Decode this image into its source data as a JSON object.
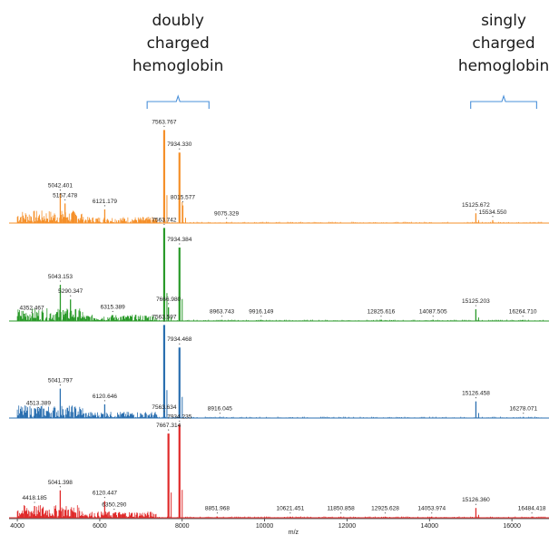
{
  "chart_data": {
    "type": "line",
    "xlabel": "m/z",
    "xlim": [
      3800,
      16900
    ],
    "x_ticks": [
      4000,
      6000,
      8000,
      10000,
      12000,
      14000,
      16000
    ],
    "annotations": [
      {
        "lines": [
          "doubly",
          "charged",
          "hemoglobin"
        ],
        "range": [
          7150,
          8650
        ]
      },
      {
        "lines": [
          "singly",
          "charged",
          "hemoglobin"
        ],
        "range": [
          15000,
          16600
        ]
      }
    ],
    "spectra": [
      {
        "color": "#f5902a",
        "peaks": [
          {
            "mz": 7563.767,
            "intensity": 0.95
          },
          {
            "mz": 7934.33,
            "intensity": 0.72
          },
          {
            "mz": 5042.401,
            "intensity": 0.3
          },
          {
            "mz": 5157.478,
            "intensity": 0.2
          },
          {
            "mz": 6121.179,
            "intensity": 0.14
          },
          {
            "mz": 8015.577,
            "intensity": 0.18
          },
          {
            "mz": 9075.329,
            "intensity": 0.012
          },
          {
            "mz": 15125.672,
            "intensity": 0.1
          },
          {
            "mz": 15534.55,
            "intensity": 0.03
          }
        ]
      },
      {
        "color": "#2a9a2a",
        "peaks": [
          {
            "mz": 7563.742,
            "intensity": 0.95
          },
          {
            "mz": 7934.384,
            "intensity": 0.75
          },
          {
            "mz": 4352.467,
            "intensity": 0.05
          },
          {
            "mz": 5043.153,
            "intensity": 0.37
          },
          {
            "mz": 5290.347,
            "intensity": 0.22
          },
          {
            "mz": 6315.389,
            "intensity": 0.06
          },
          {
            "mz": 7666.98,
            "intensity": 0.14
          },
          {
            "mz": 8963.743,
            "intensity": 0.012
          },
          {
            "mz": 9916.149,
            "intensity": 0.012
          },
          {
            "mz": 12825.616,
            "intensity": 0.012
          },
          {
            "mz": 14087.505,
            "intensity": 0.012
          },
          {
            "mz": 15125.203,
            "intensity": 0.12
          },
          {
            "mz": 16264.71,
            "intensity": 0.012
          }
        ]
      },
      {
        "color": "#2a6fb0",
        "peaks": [
          {
            "mz": 7563.597,
            "intensity": 0.95
          },
          {
            "mz": 7934.468,
            "intensity": 0.72
          },
          {
            "mz": 4513.389,
            "intensity": 0.07
          },
          {
            "mz": 5041.797,
            "intensity": 0.3
          },
          {
            "mz": 6120.646,
            "intensity": 0.14
          },
          {
            "mz": 7563.634,
            "intensity": 0.03
          },
          {
            "mz": 8916.045,
            "intensity": 0.012
          },
          {
            "mz": 15126.458,
            "intensity": 0.17
          },
          {
            "mz": 16278.071,
            "intensity": 0.012
          }
        ]
      },
      {
        "color": "#e02a2a",
        "peaks": [
          {
            "mz": 7934.235,
            "intensity": 0.95
          },
          {
            "mz": 7667.314,
            "intensity": 0.86
          },
          {
            "mz": 4418.185,
            "intensity": 0.12
          },
          {
            "mz": 5041.398,
            "intensity": 0.28
          },
          {
            "mz": 6120.447,
            "intensity": 0.17
          },
          {
            "mz": 6350.29,
            "intensity": 0.05
          },
          {
            "mz": 8851.968,
            "intensity": 0.012
          },
          {
            "mz": 10621.451,
            "intensity": 0.012
          },
          {
            "mz": 11850.858,
            "intensity": 0.012
          },
          {
            "mz": 12925.628,
            "intensity": 0.012
          },
          {
            "mz": 14053.974,
            "intensity": 0.012
          },
          {
            "mz": 15126.36,
            "intensity": 0.1
          },
          {
            "mz": 16484.418,
            "intensity": 0.012
          }
        ]
      }
    ]
  }
}
